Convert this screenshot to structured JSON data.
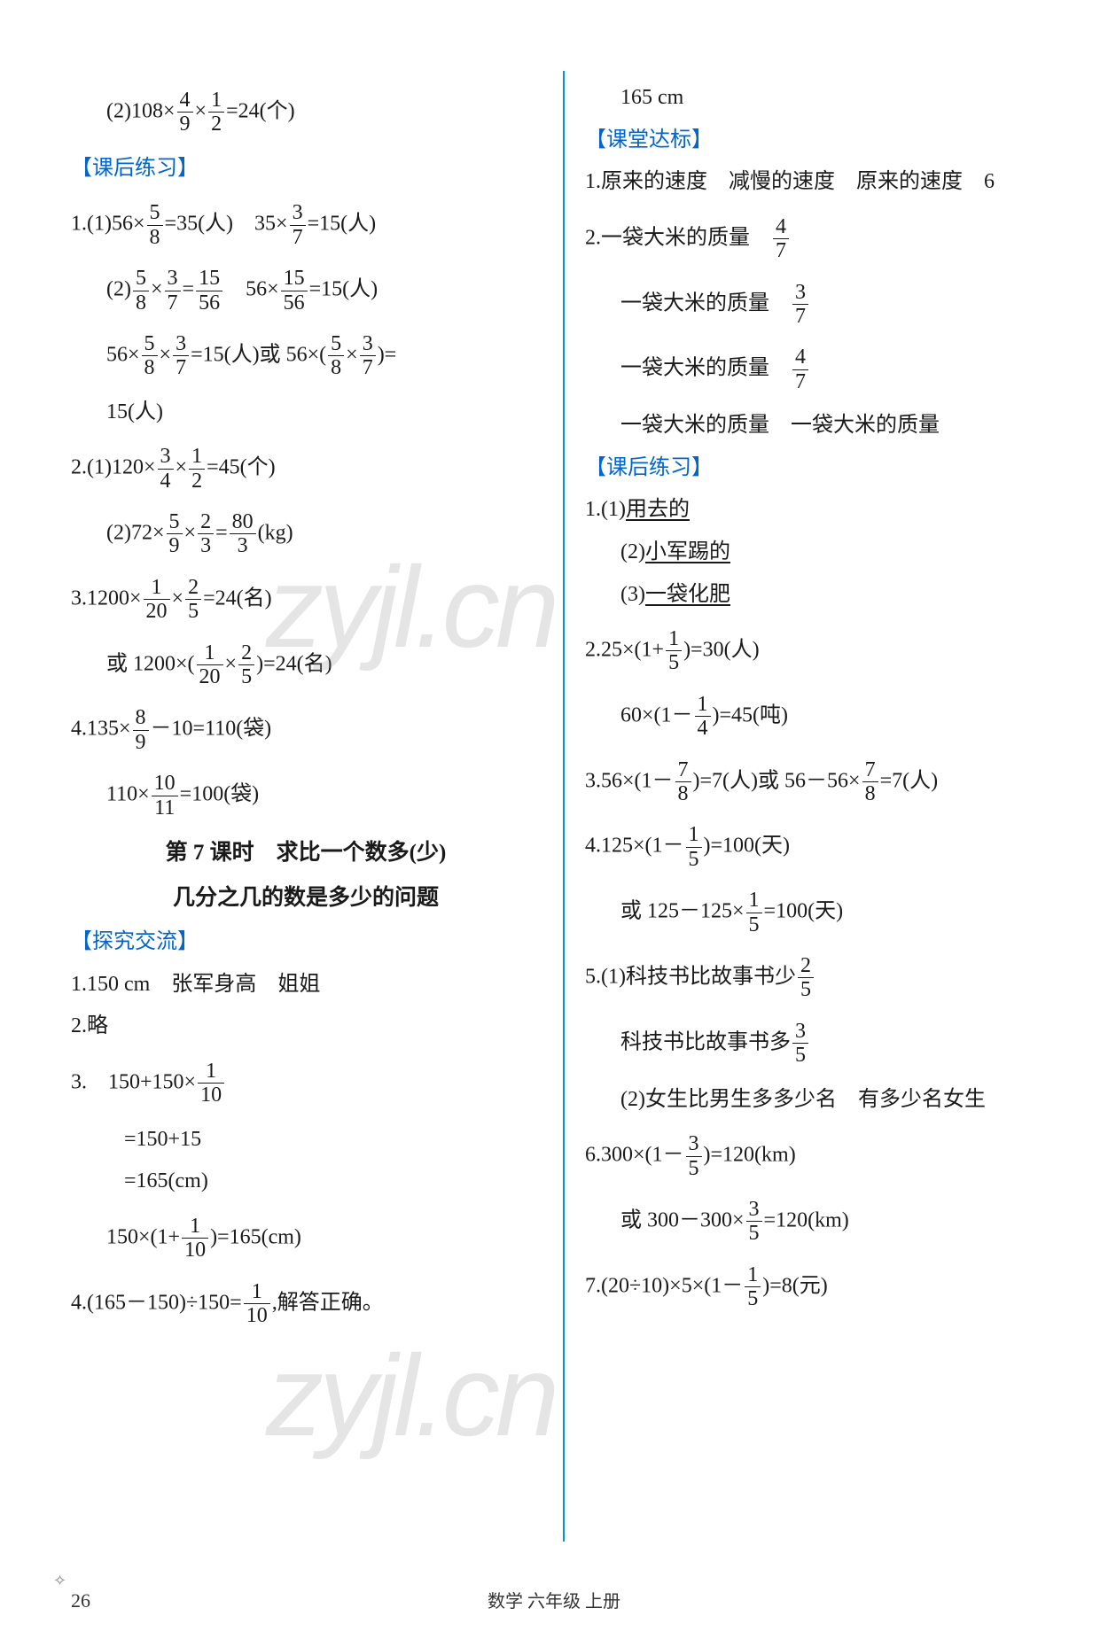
{
  "watermark": "zyjl.cn",
  "footer": "数学 六年级 上册",
  "pageNumber": "26",
  "left": {
    "top1": "(2)108×|4/9|×|1/2|=24(个)",
    "h1": "【课后练习】",
    "l1a": "1.(1)56×|5/8|=35(人)　35×|3/7|=15(人)",
    "l1b": "(2)|5/8|×|3/7|=|15/56|　56×|15/56|=15(人)",
    "l1c": "56×|5/8|×|3/7|=15(人)或 56×(|5/8|×|3/7|)=",
    "l1d": "15(人)",
    "l2a": "2.(1)120×|3/4|×|1/2|=45(个)",
    "l2b": "(2)72×|5/9|×|2/3|=|80/3|(kg)",
    "l3a": "3.1200×|1/20|×|2/5|=24(名)",
    "l3b": "或 1200×(|1/20|×|2/5|)=24(名)",
    "l4a": "4.135×|8/9|－10=110(袋)",
    "l4b": "110×|10/11|=100(袋)",
    "sectionTitle1": "第 7 课时　求比一个数多(少)",
    "sectionTitle2": "几分之几的数是多少的问题",
    "h2": "【探究交流】",
    "e1": "1.150 cm　张军身高　姐姐",
    "e2": "2.略",
    "e3a": "3.　150+150×|1/10|",
    "e3b": "=150+15",
    "e3c": "=165(cm)",
    "e3d": "150×(1+|1/10|)=165(cm)",
    "e4": "4.(165－150)÷150=|1/10|,解答正确。"
  },
  "right": {
    "top": "165 cm",
    "h1": "【课堂达标】",
    "r1": "1.原来的速度　减慢的速度　原来的速度　6",
    "r2a": "2.一袋大米的质量　|4/7|",
    "r2b": "一袋大米的质量　|3/7|",
    "r2c": "一袋大米的质量　|4/7|",
    "r2d": "一袋大米的质量　一袋大米的质量",
    "h2": "【课后练习】",
    "p1a": "1.(1)",
    "p1a_u": "用去的",
    "p1b": "(2)",
    "p1b_u": "小军踢的",
    "p1c": "(3)",
    "p1c_u": "一袋化肥",
    "p2a": "2.25×(1+|1/5|)=30(人)",
    "p2b": "60×(1－|1/4|)=45(吨)",
    "p3": "3.56×(1－|7/8|)=7(人)或 56－56×|7/8|=7(人)",
    "p4a": "4.125×(1－|1/5|)=100(天)",
    "p4b": "或 125－125×|1/5|=100(天)",
    "p5a": "5.(1)科技书比故事书少|2/5|",
    "p5b": "科技书比故事书多|3/5|",
    "p5c": "(2)女生比男生多多少名　有多少名女生",
    "p6a": "6.300×(1－|3/5|)=120(km)",
    "p6b": "或 300－300×|3/5|=120(km)",
    "p7": "7.(20÷10)×5×(1－|1/5|)=8(元)"
  }
}
